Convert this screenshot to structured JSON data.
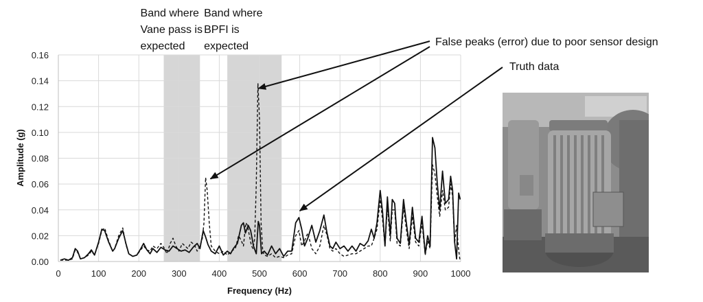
{
  "chart_data": {
    "type": "line",
    "title": "",
    "xlabel": "Frequency (Hz)",
    "ylabel": "Amplitude (g)",
    "xlim": [
      0,
      1000
    ],
    "ylim": [
      0,
      0.16
    ],
    "x_ticks": [
      0,
      100,
      200,
      300,
      400,
      500,
      600,
      700,
      800,
      900,
      1000
    ],
    "y_ticks": [
      "0.00",
      "0.02",
      "0.04",
      "0.06",
      "0.08",
      "0.10",
      "0.12",
      "0.14",
      "0.16"
    ],
    "grid": true,
    "shaded_bands": [
      {
        "x0": 262,
        "x1": 352,
        "label_lines": [
          "Band where",
          "Vane pass is",
          "expected"
        ]
      },
      {
        "x0": 420,
        "x1": 555,
        "label_lines": [
          "Band where",
          "BPFI is",
          "expected"
        ]
      }
    ],
    "annotations": [
      {
        "text": "False peaks (error) due to poor sensor design",
        "points_to": [
          {
            "x": 497,
            "y": 0.134
          },
          {
            "x": 378,
            "y": 0.064
          }
        ]
      },
      {
        "text": "Truth data",
        "points_to": [
          {
            "x": 600,
            "y": 0.035
          }
        ]
      }
    ],
    "series": [
      {
        "style": "solid",
        "x": [
          5,
          15,
          25,
          35,
          42,
          48,
          55,
          65,
          75,
          82,
          90,
          100,
          108,
          115,
          125,
          135,
          140,
          150,
          160,
          168,
          175,
          185,
          195,
          205,
          212,
          220,
          228,
          235,
          245,
          255,
          265,
          275,
          285,
          295,
          305,
          315,
          325,
          335,
          345,
          352,
          360,
          366,
          372,
          380,
          390,
          400,
          410,
          420,
          428,
          435,
          445,
          455,
          460,
          465,
          472,
          478,
          485,
          492,
          497,
          500,
          505,
          512,
          520,
          530,
          540,
          550,
          560,
          570,
          580,
          590,
          598,
          605,
          612,
          620,
          630,
          640,
          650,
          660,
          668,
          675,
          682,
          690,
          700,
          710,
          720,
          730,
          740,
          750,
          760,
          770,
          778,
          785,
          792,
          800,
          806,
          812,
          818,
          825,
          830,
          836,
          842,
          850,
          858,
          865,
          872,
          880,
          888,
          896,
          904,
          912,
          918,
          924,
          930,
          936,
          942,
          948,
          955,
          962,
          970,
          975,
          980,
          985,
          990,
          995,
          999
        ],
        "values": [
          0.001,
          0.002,
          0.001,
          0.003,
          0.01,
          0.008,
          0.002,
          0.003,
          0.006,
          0.009,
          0.005,
          0.015,
          0.025,
          0.024,
          0.015,
          0.008,
          0.01,
          0.018,
          0.024,
          0.014,
          0.006,
          0.004,
          0.005,
          0.01,
          0.014,
          0.009,
          0.006,
          0.01,
          0.007,
          0.011,
          0.009,
          0.008,
          0.012,
          0.01,
          0.008,
          0.009,
          0.007,
          0.011,
          0.014,
          0.01,
          0.024,
          0.019,
          0.013,
          0.008,
          0.006,
          0.012,
          0.005,
          0.008,
          0.006,
          0.01,
          0.014,
          0.028,
          0.03,
          0.022,
          0.028,
          0.024,
          0.012,
          0.006,
          0.031,
          0.028,
          0.006,
          0.008,
          0.005,
          0.012,
          0.006,
          0.01,
          0.004,
          0.008,
          0.008,
          0.03,
          0.034,
          0.025,
          0.012,
          0.018,
          0.028,
          0.015,
          0.024,
          0.036,
          0.022,
          0.012,
          0.01,
          0.015,
          0.01,
          0.012,
          0.008,
          0.012,
          0.008,
          0.014,
          0.012,
          0.016,
          0.025,
          0.018,
          0.03,
          0.055,
          0.038,
          0.012,
          0.05,
          0.02,
          0.048,
          0.045,
          0.018,
          0.014,
          0.048,
          0.03,
          0.013,
          0.042,
          0.018,
          0.015,
          0.035,
          0.006,
          0.02,
          0.012,
          0.096,
          0.088,
          0.06,
          0.04,
          0.07,
          0.045,
          0.048,
          0.066,
          0.055,
          0.015,
          0.002,
          0.053,
          0.048
        ]
      },
      {
        "style": "dashed",
        "x": [
          5,
          15,
          25,
          35,
          42,
          48,
          55,
          65,
          75,
          82,
          90,
          100,
          108,
          115,
          125,
          135,
          140,
          150,
          160,
          168,
          175,
          185,
          195,
          205,
          212,
          220,
          228,
          235,
          245,
          255,
          262,
          270,
          278,
          285,
          292,
          300,
          308,
          315,
          322,
          330,
          338,
          345,
          352,
          358,
          362,
          366,
          370,
          375,
          380,
          390,
          400,
          410,
          420,
          430,
          440,
          448,
          455,
          460,
          466,
          470,
          475,
          480,
          484,
          488,
          492,
          496,
          500,
          504,
          508,
          512,
          520,
          530,
          540,
          550,
          560,
          570,
          580,
          590,
          598,
          605,
          612,
          620,
          630,
          640,
          650,
          660,
          668,
          675,
          682,
          690,
          700,
          710,
          720,
          730,
          740,
          750,
          760,
          770,
          778,
          785,
          792,
          800,
          806,
          812,
          818,
          825,
          830,
          836,
          842,
          850,
          858,
          865,
          872,
          880,
          888,
          896,
          904,
          912,
          918,
          924,
          930,
          936,
          942,
          948,
          955,
          962,
          970,
          975,
          980,
          985,
          990,
          994,
          997,
          999
        ],
        "values": [
          0.001,
          0.001,
          0.001,
          0.002,
          0.009,
          0.007,
          0.002,
          0.003,
          0.005,
          0.008,
          0.005,
          0.014,
          0.024,
          0.026,
          0.016,
          0.008,
          0.01,
          0.02,
          0.026,
          0.013,
          0.006,
          0.004,
          0.005,
          0.009,
          0.012,
          0.009,
          0.008,
          0.012,
          0.01,
          0.014,
          0.011,
          0.006,
          0.014,
          0.018,
          0.012,
          0.008,
          0.014,
          0.012,
          0.01,
          0.015,
          0.013,
          0.008,
          0.012,
          0.018,
          0.03,
          0.065,
          0.055,
          0.03,
          0.012,
          0.008,
          0.006,
          0.008,
          0.005,
          0.008,
          0.01,
          0.02,
          0.016,
          0.012,
          0.03,
          0.028,
          0.02,
          0.012,
          0.01,
          0.018,
          0.06,
          0.138,
          0.11,
          0.03,
          0.008,
          0.005,
          0.004,
          0.006,
          0.003,
          0.004,
          0.003,
          0.005,
          0.006,
          0.02,
          0.024,
          0.012,
          0.016,
          0.022,
          0.01,
          0.006,
          0.012,
          0.028,
          0.02,
          0.01,
          0.008,
          0.01,
          0.006,
          0.004,
          0.005,
          0.006,
          0.006,
          0.008,
          0.01,
          0.012,
          0.012,
          0.018,
          0.025,
          0.048,
          0.032,
          0.012,
          0.042,
          0.016,
          0.04,
          0.04,
          0.014,
          0.012,
          0.042,
          0.025,
          0.01,
          0.035,
          0.015,
          0.012,
          0.03,
          0.005,
          0.016,
          0.01,
          0.075,
          0.068,
          0.05,
          0.035,
          0.055,
          0.04,
          0.042,
          0.06,
          0.05,
          0.014,
          0.028,
          0.012,
          0.004,
          0.0
        ]
      }
    ]
  },
  "photo": {
    "description_icon": "electric-motor-photo-icon"
  }
}
